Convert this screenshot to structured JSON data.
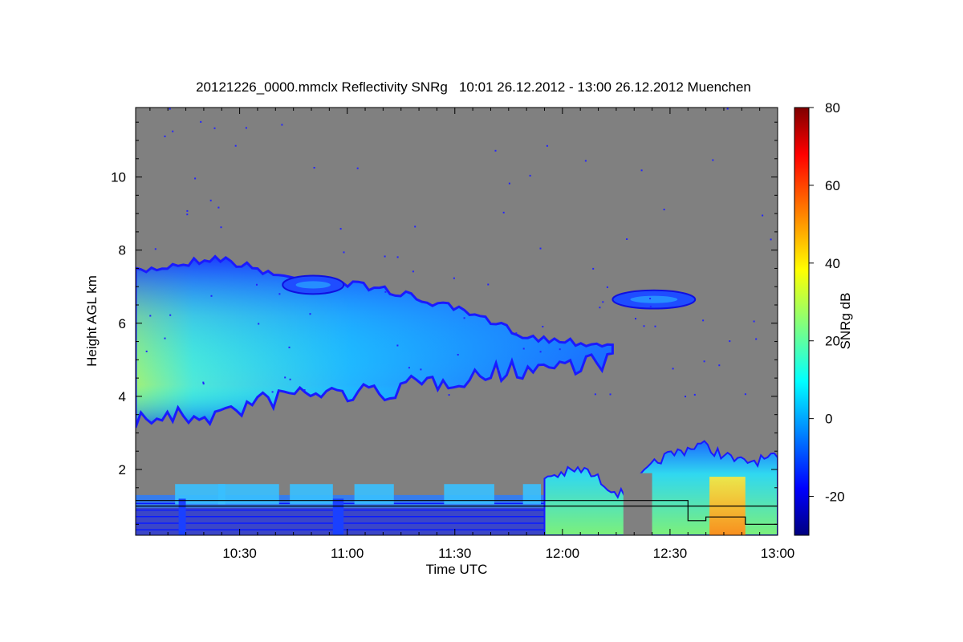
{
  "chart_data": {
    "type": "heatmap",
    "title": "20121226_0000.mmclx Reflectivity SNRg   10:01 26.12.2012 - 13:00 26.12.2012 Muenchen",
    "xlabel": "Time UTC",
    "ylabel": "Height AGL km",
    "colorbar_label": "SNRg dB",
    "xlim": [
      "10:01",
      "13:00"
    ],
    "ylim": [
      0.2,
      11.9
    ],
    "zlim": [
      -30,
      80
    ],
    "background_color": "#808080",
    "x_ticks": [
      "10:30",
      "11:00",
      "11:30",
      "12:00",
      "12:30",
      "13:00"
    ],
    "y_ticks": [
      "2",
      "4",
      "6",
      "8",
      "10"
    ],
    "colorbar_ticks": [
      "-20",
      "0",
      "20",
      "40",
      "60",
      "80"
    ],
    "grid": false,
    "echo_regions": [
      {
        "name": "upper-cloud-layer",
        "time_start": "10:01",
        "time_end": "12:14",
        "top_km": [
          7.4,
          7.8,
          7.2,
          7.0,
          6.4,
          5.6,
          5.4
        ],
        "base_km": [
          3.5,
          3.6,
          4.2,
          4.2,
          4.6,
          4.9,
          5.1
        ],
        "peak_snr_db": 35
      },
      {
        "name": "upper-fragment-1",
        "time_start": "10:42",
        "time_end": "10:59",
        "height_km": [
          6.8,
          7.3
        ],
        "peak_snr_db": -5
      },
      {
        "name": "upper-fragment-2",
        "time_start": "12:14",
        "time_end": "12:37",
        "height_km": [
          6.4,
          6.9
        ],
        "peak_snr_db": 0
      },
      {
        "name": "low-level-clutter",
        "time_start": "10:01",
        "time_end": "11:55",
        "height_km": [
          0.2,
          1.3
        ],
        "peak_snr_db": 10
      },
      {
        "name": "precipitation",
        "time_start": "11:55",
        "time_end": "13:00",
        "top_km": [
          1.8,
          2.0,
          1.3,
          2.3,
          2.7,
          2.2,
          2.3
        ],
        "base_km": [
          0.2,
          0.2
        ],
        "peak_snr_db": 50
      }
    ]
  }
}
